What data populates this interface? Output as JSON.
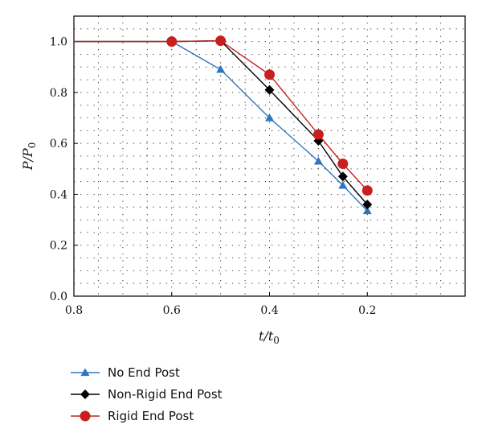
{
  "chart_data": {
    "type": "line",
    "xlabel": {
      "main": "t/t",
      "sub": "0"
    },
    "ylabel": {
      "main": "P/P",
      "sub": "0"
    },
    "xlim": [
      0.8,
      0.0
    ],
    "ylim": [
      0.0,
      1.1
    ],
    "x_reversed": true,
    "xticks": [
      0.8,
      0.6,
      0.4,
      0.2
    ],
    "xtick_labels": [
      "0.8",
      "0.6",
      "0.4",
      "0.2"
    ],
    "yticks": [
      0.0,
      0.2,
      0.4,
      0.6,
      0.8,
      1.0
    ],
    "ytick_labels": [
      "0.0",
      "0.2",
      "0.4",
      "0.6",
      "0.8",
      "1.0"
    ],
    "grid": "dotted",
    "legend_position": "below",
    "series": [
      {
        "name": "No End Post",
        "color": "#2e75c0",
        "marker": "triangle",
        "x": [
          0.8,
          0.6,
          0.5,
          0.4,
          0.3,
          0.25,
          0.2
        ],
        "y": [
          1.0,
          1.0,
          0.89,
          0.7,
          0.53,
          0.435,
          0.335
        ]
      },
      {
        "name": "Non-Rigid End Post",
        "color": "#000000",
        "marker": "diamond",
        "x": [
          0.8,
          0.6,
          0.5,
          0.4,
          0.3,
          0.25,
          0.2
        ],
        "y": [
          1.0,
          1.0,
          1.003,
          0.81,
          0.61,
          0.47,
          0.36
        ]
      },
      {
        "name": "Rigid End Post",
        "color": "#c8201f",
        "marker": "circle",
        "x": [
          0.8,
          0.6,
          0.5,
          0.4,
          0.3,
          0.25,
          0.2
        ],
        "y": [
          1.0,
          1.0,
          1.003,
          0.87,
          0.635,
          0.52,
          0.415
        ]
      }
    ]
  }
}
